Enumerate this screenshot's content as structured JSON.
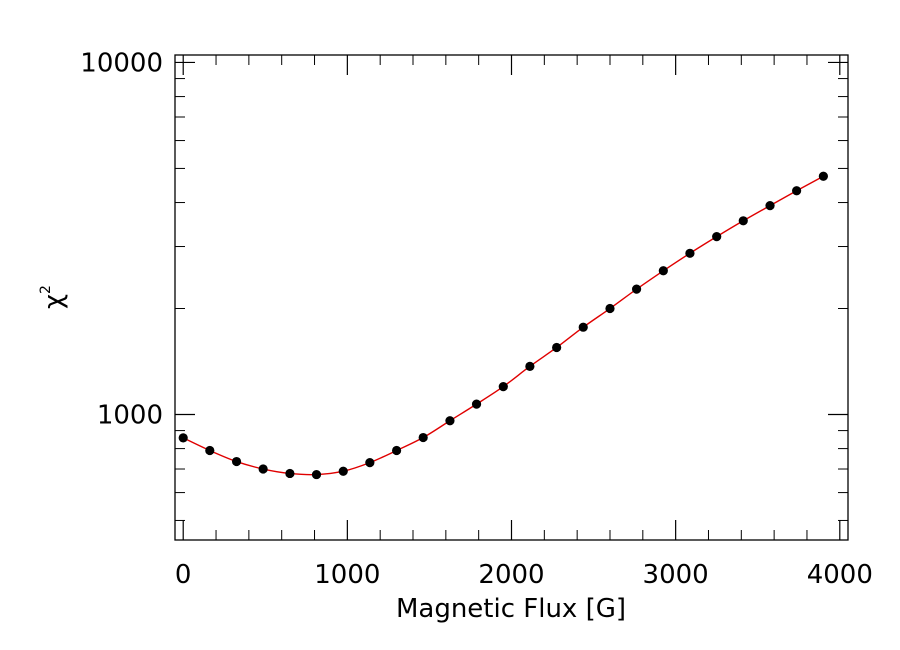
{
  "chart_data": {
    "type": "scatter",
    "title": "",
    "xlabel": "Magnetic Flux [G]",
    "ylabel_symbol": "χ",
    "ylabel_superscript": "2",
    "xlim": [
      -50,
      4050
    ],
    "ylim": [
      440,
      10500
    ],
    "y_scale": "log",
    "x_ticks": [
      {
        "value": 0,
        "label": "0"
      },
      {
        "value": 1000,
        "label": "1000"
      },
      {
        "value": 2000,
        "label": "2000"
      },
      {
        "value": 3000,
        "label": "3000"
      },
      {
        "value": 4000,
        "label": "4000"
      }
    ],
    "y_ticks": [
      {
        "value": 1000,
        "label": "1000"
      },
      {
        "value": 10000,
        "label": "10000"
      }
    ],
    "grid": false,
    "legend": "none",
    "colors": {
      "points": "#000000",
      "fit_line": "#e00000",
      "axes": "#000000"
    },
    "series": [
      {
        "role": "points",
        "x": [
          0,
          162,
          325,
          487,
          650,
          812,
          975,
          1137,
          1300,
          1462,
          1625,
          1787,
          1950,
          2112,
          2275,
          2437,
          2600,
          2762,
          2925,
          3087,
          3250,
          3412,
          3575,
          3737,
          3900
        ],
        "y": [
          858,
          790,
          735,
          700,
          680,
          675,
          690,
          730,
          790,
          860,
          960,
          1070,
          1200,
          1370,
          1550,
          1770,
          2000,
          2270,
          2560,
          2870,
          3200,
          3550,
          3920,
          4320,
          4750
        ]
      },
      {
        "role": "fit_line",
        "x": [
          0,
          162,
          325,
          487,
          650,
          812,
          975,
          1137,
          1300,
          1462,
          1625,
          1787,
          1950,
          2112,
          2275,
          2437,
          2600,
          2762,
          2925,
          3087,
          3250,
          3412,
          3575,
          3737,
          3900
        ],
        "y": [
          858,
          790,
          735,
          700,
          680,
          675,
          690,
          730,
          790,
          860,
          960,
          1070,
          1200,
          1370,
          1550,
          1770,
          2000,
          2270,
          2560,
          2870,
          3200,
          3550,
          3920,
          4320,
          4750
        ]
      }
    ]
  }
}
